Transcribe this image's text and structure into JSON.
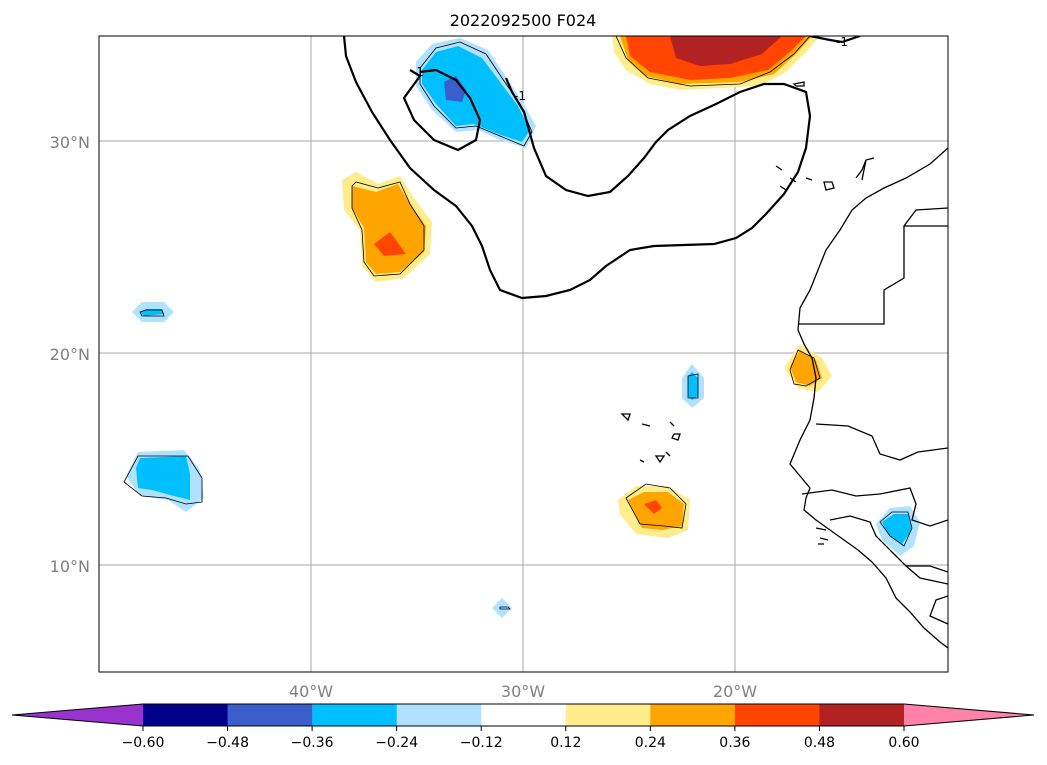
{
  "title": "2022092500 F024",
  "lat_labels": [
    "30°N",
    "20°N",
    "10°N"
  ],
  "lon_labels": [
    "40°W",
    "30°W",
    "20°W"
  ],
  "contour_labels": [
    "-1",
    "-1",
    "-1"
  ],
  "colorbar": {
    "ticks": [
      "−0.60",
      "−0.48",
      "−0.36",
      "−0.24",
      "−0.12",
      "0.12",
      "0.24",
      "0.36",
      "0.48",
      "0.60"
    ],
    "colors": [
      "#9a32cd",
      "#00008b",
      "#3a5fcd",
      "#00bfff",
      "#b0e2ff",
      "#ffffff",
      "#ffec8b",
      "#ffa500",
      "#ff4500",
      "#b22222",
      "#ff82ab"
    ]
  },
  "map_extent": {
    "lon": [
      -50,
      -10
    ],
    "lat": [
      5,
      35
    ]
  },
  "colors": {
    "grid": "#a8a8a8",
    "coast": "#000000"
  }
}
